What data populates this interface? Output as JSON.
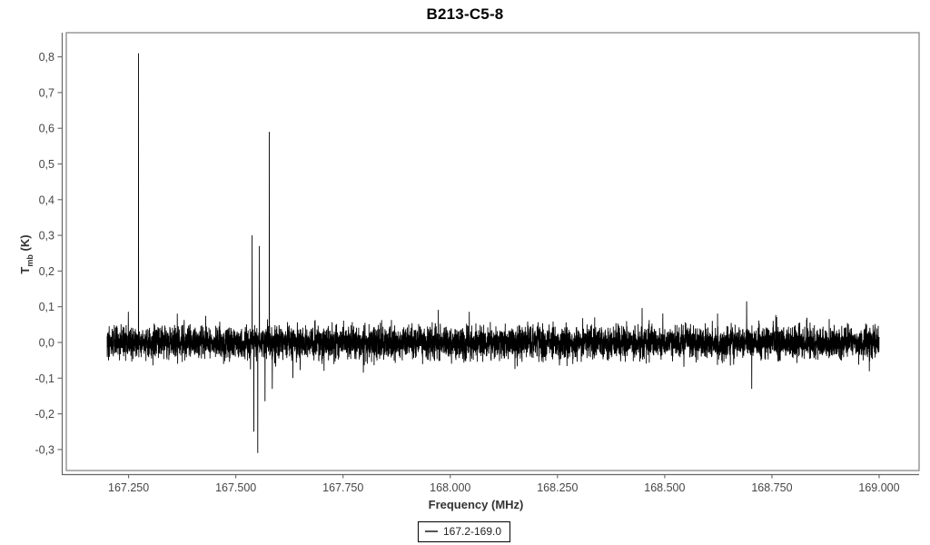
{
  "chart_data": {
    "type": "line",
    "title": "B213-C5-8",
    "xlabel": "Frequency (MHz)",
    "ylabel": "Tmb (K)",
    "ylabel_parts": {
      "base": "T",
      "sub": "mb",
      "rest": " (K)"
    },
    "legend": [
      "167.2-169.0"
    ],
    "legend_position": "bottom-center",
    "grid": false,
    "line_color": "#000000",
    "frame_color": "#888888",
    "axis_color": "#666666",
    "tick_label_color": "#464646",
    "x_range": [
      167.2,
      169.0
    ],
    "ylim": [
      -0.36,
      0.87
    ],
    "x_ticks": [
      {
        "value": 167.25,
        "label": "167.250"
      },
      {
        "value": 167.5,
        "label": "167.500"
      },
      {
        "value": 167.75,
        "label": "167.750"
      },
      {
        "value": 168.0,
        "label": "168.000"
      },
      {
        "value": 168.25,
        "label": "168.250"
      },
      {
        "value": 168.5,
        "label": "168.500"
      },
      {
        "value": 168.75,
        "label": "168.750"
      },
      {
        "value": 169.0,
        "label": "169.000"
      }
    ],
    "y_ticks": [
      {
        "value": 0.8,
        "label": "0,8"
      },
      {
        "value": 0.7,
        "label": "0,7"
      },
      {
        "value": 0.6,
        "label": "0,6"
      },
      {
        "value": 0.5,
        "label": "0,5"
      },
      {
        "value": 0.4,
        "label": "0,4"
      },
      {
        "value": 0.3,
        "label": "0,3"
      },
      {
        "value": 0.2,
        "label": "0,2"
      },
      {
        "value": 0.1,
        "label": "0,1"
      },
      {
        "value": 0.0,
        "label": "0,0"
      },
      {
        "value": -0.1,
        "label": "-0,1"
      },
      {
        "value": -0.2,
        "label": "-0,2"
      },
      {
        "value": -0.3,
        "label": "-0,3"
      }
    ],
    "noise": {
      "mean": 0.0,
      "sigma": 0.022,
      "n_channels": 7000,
      "seed": 42,
      "band_extent": 0.07
    },
    "peaks": [
      {
        "freq": 167.273,
        "T": 0.81
      },
      {
        "freq": 167.538,
        "T": 0.3
      },
      {
        "freq": 167.555,
        "T": 0.27
      },
      {
        "freq": 167.578,
        "T": 0.59
      },
      {
        "freq": 168.691,
        "T": 0.115
      },
      {
        "freq": 167.542,
        "T": -0.25
      },
      {
        "freq": 167.551,
        "T": -0.31
      },
      {
        "freq": 167.568,
        "T": -0.165
      },
      {
        "freq": 167.585,
        "T": -0.13
      },
      {
        "freq": 167.633,
        "T": -0.1
      },
      {
        "freq": 168.703,
        "T": -0.13
      }
    ]
  }
}
